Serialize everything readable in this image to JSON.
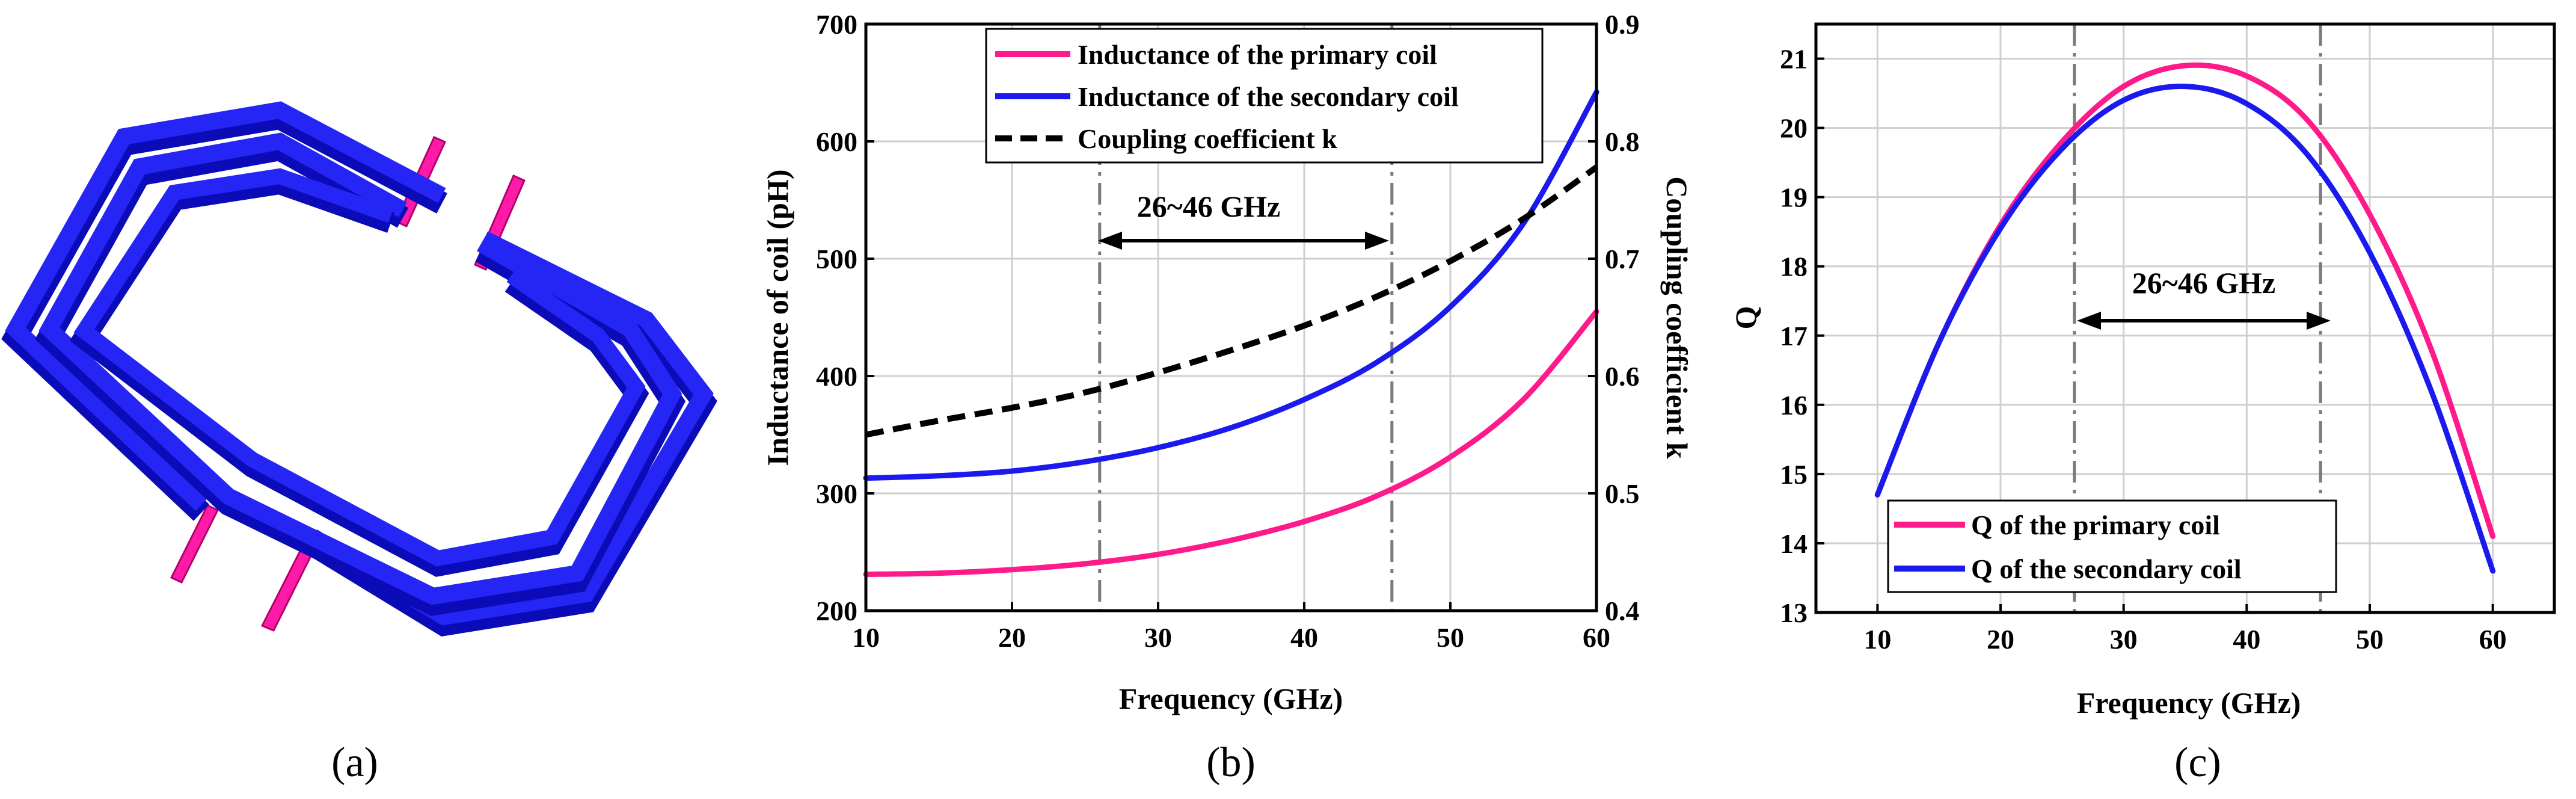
{
  "colors": {
    "coil_blue": "#1f1ff0",
    "coil_blue_dark": "#0b0bb8",
    "port_magenta": "#ff1aa8",
    "primary": "#ff1a8c",
    "secondary": "#1a1aee",
    "coupling": "#000000",
    "grid": "#cfcfcf",
    "marker_line": "#7a7a7a"
  },
  "panels": {
    "a": {
      "label": "(a)",
      "icon": "octagonal-transformer-coil-icon"
    },
    "b": {
      "label": "(b)",
      "band_label": "26~46 GHz",
      "band": [
        26,
        46
      ]
    },
    "c": {
      "label": "(c)",
      "band_label": "26~46 GHz",
      "band": [
        26,
        46
      ]
    }
  },
  "chart_data": [
    {
      "type": "line",
      "panel": "b",
      "title": "",
      "xlabel": "Frequency (GHz)",
      "ylabel": "Inductance of coil (pH)",
      "y2label": "Coupling coefficient k",
      "xlim": [
        10,
        60
      ],
      "ylim": [
        200,
        700
      ],
      "y2lim": [
        0.4,
        0.9
      ],
      "xticks": [
        "10",
        "20",
        "30",
        "40",
        "50",
        "60"
      ],
      "yticks": [
        "200",
        "300",
        "400",
        "500",
        "600",
        "700"
      ],
      "y2ticks": [
        "0.4",
        "0.5",
        "0.6",
        "0.7",
        "0.8",
        "0.9"
      ],
      "grid": true,
      "legend_position": "top-center",
      "x": [
        10,
        15,
        20,
        25,
        30,
        35,
        40,
        45,
        50,
        55,
        60
      ],
      "series": [
        {
          "name": "Inductance of the primary coil",
          "axis": "left",
          "style": "solid",
          "colorKey": "primary",
          "values": [
            231,
            232,
            235,
            240,
            248,
            260,
            276,
            298,
            331,
            380,
            455
          ]
        },
        {
          "name": "Inductance of the secondary coil",
          "axis": "left",
          "style": "solid",
          "colorKey": "secondary",
          "values": [
            313,
            315,
            319,
            327,
            339,
            356,
            380,
            412,
            459,
            530,
            642
          ]
        },
        {
          "name": "Coupling coefficient k",
          "axis": "right",
          "style": "dashed",
          "colorKey": "coupling",
          "values": [
            0.55,
            0.562,
            0.573,
            0.586,
            0.603,
            0.622,
            0.643,
            0.668,
            0.698,
            0.734,
            0.778
          ]
        }
      ]
    },
    {
      "type": "line",
      "panel": "c",
      "title": "",
      "xlabel": "Frequency (GHz)",
      "ylabel": "Q",
      "xlim": [
        5,
        65
      ],
      "ylim": [
        13,
        21.5
      ],
      "xticks": [
        "10",
        "20",
        "30",
        "40",
        "50",
        "60"
      ],
      "yticks": [
        "13",
        "14",
        "15",
        "16",
        "17",
        "18",
        "19",
        "20",
        "21"
      ],
      "grid": true,
      "legend_position": "bottom-left",
      "x": [
        10,
        15,
        20,
        25,
        30,
        35,
        40,
        45,
        50,
        55,
        60
      ],
      "series": [
        {
          "name": "Q of the primary coil",
          "style": "solid",
          "colorKey": "primary",
          "values": [
            14.7,
            16.9,
            18.6,
            19.8,
            20.6,
            20.9,
            20.75,
            20.1,
            18.75,
            16.8,
            14.1
          ]
        },
        {
          "name": "Q of the secondary coil",
          "style": "solid",
          "colorKey": "secondary",
          "values": [
            14.7,
            16.9,
            18.55,
            19.7,
            20.4,
            20.6,
            20.35,
            19.6,
            18.2,
            16.2,
            13.6
          ]
        }
      ]
    }
  ]
}
